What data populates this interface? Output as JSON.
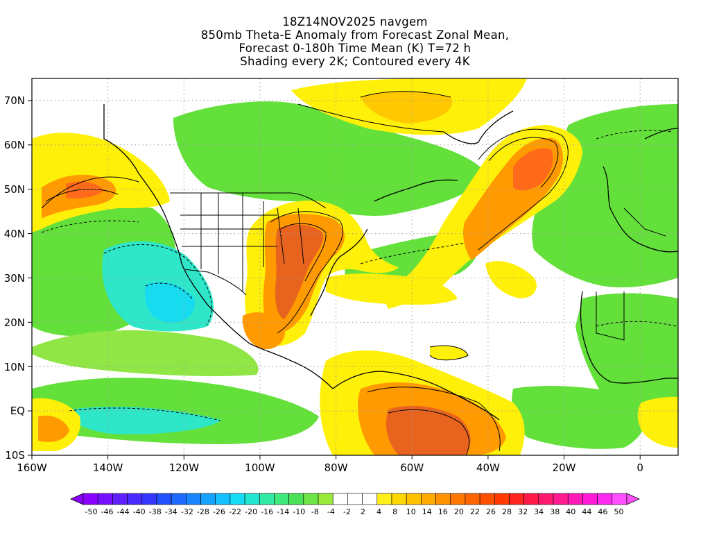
{
  "title": {
    "lines": [
      "18Z14NOV2025 navgem",
      "850mb Theta-E Anomaly from Forecast Zonal Mean,",
      "Forecast 0-180h Time Mean (K) T=72 h",
      "Shading every 2K; Contoured every 4K"
    ]
  },
  "map": {
    "lon_range": [
      -160,
      10
    ],
    "lat_range": [
      -10,
      75
    ],
    "lat_ticks": [
      "70N",
      "60N",
      "50N",
      "40N",
      "30N",
      "20N",
      "10N",
      "EQ",
      "10S"
    ],
    "lon_ticks": [
      "160W",
      "140W",
      "120W",
      "100W",
      "80W",
      "60W",
      "40W",
      "20W",
      "0"
    ]
  },
  "colorbar": {
    "colors": [
      "#8a00ff",
      "#7410ff",
      "#6020ff",
      "#4a2bff",
      "#3537ff",
      "#2250ff",
      "#1e6aff",
      "#1a85ff",
      "#17a2ff",
      "#16c0ff",
      "#17dcf6",
      "#22e6cf",
      "#33e9a6",
      "#3fe97e",
      "#4be258",
      "#6ee648",
      "#9aea3b",
      "#ffffff",
      "#ffffff",
      "#ffffff",
      "#fff01a",
      "#ffd700",
      "#ffc000",
      "#ffaa00",
      "#ff9200",
      "#ff7800",
      "#ff6600",
      "#ff5000",
      "#ff3a00",
      "#ff2520",
      "#ff1a4a",
      "#ff1a6e",
      "#ff1a92",
      "#ff1ab5",
      "#ff1ad8",
      "#ff2af0",
      "#ff50ff"
    ],
    "labels": [
      "-50",
      "-46",
      "-44",
      "-40",
      "-38",
      "-34",
      "-32",
      "-28",
      "-26",
      "-22",
      "-20",
      "-16",
      "-14",
      "-10",
      "-8",
      "-4",
      "-2",
      "2",
      "4",
      "8",
      "10",
      "14",
      "16",
      "20",
      "22",
      "26",
      "28",
      "32",
      "34",
      "38",
      "40",
      "44",
      "46",
      "50"
    ]
  },
  "palette": {
    "green": "#63e03a",
    "light_green": "#8fe645",
    "cyan": "#2ee6c8",
    "deep_cyan": "#17dcef",
    "yellow": "#fff00a",
    "gold": "#ffc800",
    "orange": "#ff9a00",
    "dark_orange": "#ff6a1a",
    "brown_orange": "#e8641e"
  }
}
